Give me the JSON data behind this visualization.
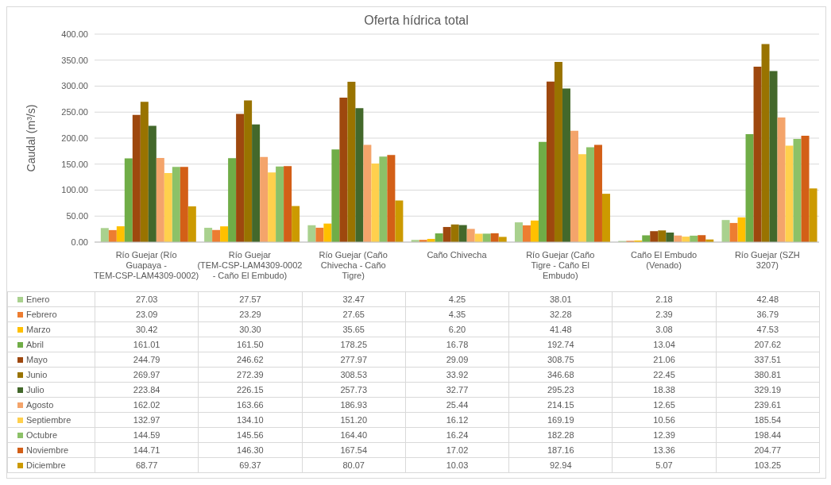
{
  "chart_data": {
    "type": "bar",
    "title": "Oferta hídrica total",
    "ylabel": "Caudal (m³/s)",
    "categories": [
      "Río Guejar (Río Guapaya - TEM-CSP-LAM4309-0002)",
      "Río Guejar (TEM-CSP-LAM4309-0002 - Caño El Embudo)",
      "Río Guejar (Caño Chivecha - Caño Tigre)",
      "Caño Chivecha",
      "Río Guejar (Caño Tigre - Caño El Embudo)",
      "Caño El Embudo (Venado)",
      "Río Guejar (SZH 3207)"
    ],
    "ylim": [
      0,
      400
    ],
    "yticks": [
      {
        "value": 0,
        "label": "0.00"
      },
      {
        "value": 50,
        "label": "50.00"
      },
      {
        "value": 100,
        "label": "100.00"
      },
      {
        "value": 150,
        "label": "150.00"
      },
      {
        "value": 200,
        "label": "200.00"
      },
      {
        "value": 250,
        "label": "250.00"
      },
      {
        "value": 300,
        "label": "300.00"
      },
      {
        "value": 350,
        "label": "350.00"
      },
      {
        "value": 400,
        "label": "400.00"
      }
    ],
    "grid": "y",
    "legend": "bottom",
    "series": [
      {
        "name": "Enero",
        "color": "#a9d18e",
        "values": [
          27.03,
          27.57,
          32.47,
          4.25,
          38.01,
          2.18,
          42.48
        ],
        "value_labels": [
          "27.03",
          "27.57",
          "32.47",
          "4.25",
          "38.01",
          "2.18",
          "42.48"
        ]
      },
      {
        "name": "Febrero",
        "color": "#ed7d31",
        "values": [
          23.09,
          23.29,
          27.65,
          4.35,
          32.28,
          2.39,
          36.79
        ],
        "value_labels": [
          "23.09",
          "23.29",
          "27.65",
          "4.35",
          "32.28",
          "2.39",
          "36.79"
        ]
      },
      {
        "name": "Marzo",
        "color": "#ffc000",
        "values": [
          30.42,
          30.3,
          35.65,
          6.2,
          41.48,
          3.08,
          47.53
        ],
        "value_labels": [
          "30.42",
          "30.30",
          "35.65",
          "6.20",
          "41.48",
          "3.08",
          "47.53"
        ]
      },
      {
        "name": "Abril",
        "color": "#70ad47",
        "values": [
          161.01,
          161.5,
          178.25,
          16.78,
          192.74,
          13.04,
          207.62
        ],
        "value_labels": [
          "161.01",
          "161.50",
          "178.25",
          "16.78",
          "192.74",
          "13.04",
          "207.62"
        ]
      },
      {
        "name": "Mayo",
        "color": "#9e480e",
        "values": [
          244.79,
          246.62,
          277.97,
          29.09,
          308.75,
          21.06,
          337.51
        ],
        "value_labels": [
          "244.79",
          "246.62",
          "277.97",
          "29.09",
          "308.75",
          "21.06",
          "337.51"
        ]
      },
      {
        "name": "Junio",
        "color": "#997300",
        "values": [
          269.97,
          272.39,
          308.53,
          33.92,
          346.68,
          22.45,
          380.81
        ],
        "value_labels": [
          "269.97",
          "272.39",
          "308.53",
          "33.92",
          "346.68",
          "22.45",
          "380.81"
        ]
      },
      {
        "name": "Julio",
        "color": "#43682b",
        "values": [
          223.84,
          226.15,
          257.73,
          32.77,
          295.23,
          18.38,
          329.19
        ],
        "value_labels": [
          "223.84",
          "226.15",
          "257.73",
          "32.77",
          "295.23",
          "18.38",
          "329.19"
        ]
      },
      {
        "name": "Agosto",
        "color": "#f4a46b",
        "values": [
          162.02,
          163.66,
          186.93,
          25.44,
          214.15,
          12.65,
          239.61
        ],
        "value_labels": [
          "162.02",
          "163.66",
          "186.93",
          "25.44",
          "214.15",
          "12.65",
          "239.61"
        ]
      },
      {
        "name": "Septiembre",
        "color": "#ffd04d",
        "values": [
          132.97,
          134.1,
          151.2,
          16.12,
          169.19,
          10.56,
          185.54
        ],
        "value_labels": [
          "132.97",
          "134.10",
          "151.20",
          "16.12",
          "169.19",
          "10.56",
          "185.54"
        ]
      },
      {
        "name": "Octubre",
        "color": "#8cc168",
        "values": [
          144.59,
          145.56,
          164.4,
          16.24,
          182.28,
          12.39,
          198.44
        ],
        "value_labels": [
          "144.59",
          "145.56",
          "164.40",
          "16.24",
          "182.28",
          "12.39",
          "198.44"
        ]
      },
      {
        "name": "Noviembre",
        "color": "#d35f17",
        "values": [
          144.71,
          146.3,
          167.54,
          17.02,
          187.16,
          13.36,
          204.77
        ],
        "value_labels": [
          "144.71",
          "146.30",
          "167.54",
          "17.02",
          "187.16",
          "13.36",
          "204.77"
        ]
      },
      {
        "name": "Diciembre",
        "color": "#cc9a00",
        "values": [
          68.77,
          69.37,
          80.07,
          10.03,
          92.94,
          5.07,
          103.25
        ],
        "value_labels": [
          "68.77",
          "69.37",
          "80.07",
          "10.03",
          "92.94",
          "5.07",
          "103.25"
        ]
      }
    ]
  }
}
